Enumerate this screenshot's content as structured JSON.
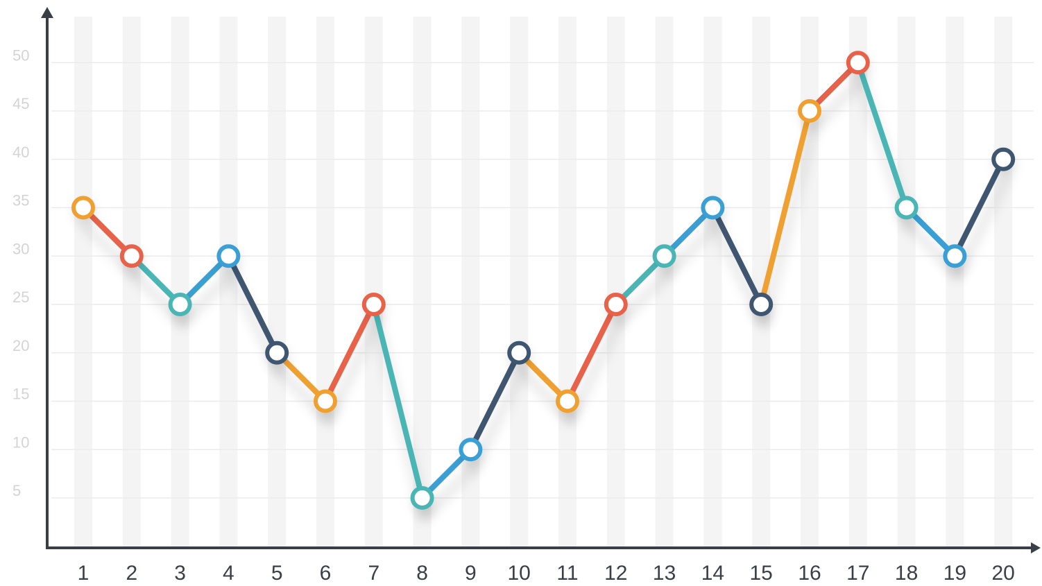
{
  "chart_data": {
    "type": "line",
    "title": "",
    "xlabel": "",
    "ylabel": "",
    "categories": [
      "1",
      "2",
      "3",
      "4",
      "5",
      "6",
      "7",
      "8",
      "9",
      "10",
      "11",
      "12",
      "13",
      "14",
      "15",
      "16",
      "17",
      "18",
      "19",
      "20"
    ],
    "values": [
      35,
      30,
      25,
      30,
      20,
      15,
      25,
      5,
      10,
      20,
      15,
      25,
      30,
      35,
      25,
      45,
      50,
      35,
      30,
      40
    ],
    "y_ticks": [
      "5",
      "10",
      "15",
      "20",
      "25",
      "30",
      "35",
      "40",
      "45",
      "50"
    ],
    "ylim": [
      0,
      55
    ],
    "grid": true,
    "legend": "none",
    "point_colors": [
      "#f0a030",
      "#e8624a",
      "#49b5b5",
      "#3a9fd4",
      "#3f5670",
      "#f0a030",
      "#e8624a",
      "#49b5b5",
      "#3a9fd4",
      "#3f5670",
      "#f0a030",
      "#e8624a",
      "#49b5b5",
      "#3a9fd4",
      "#3f5670",
      "#f0a030",
      "#e8624a",
      "#49b5b5",
      "#3a9fd4",
      "#3f5670"
    ],
    "colors": {
      "orange": "#f0a030",
      "red": "#e8624a",
      "teal": "#49b5b5",
      "blue": "#3a9fd4",
      "navy": "#3f5670",
      "axis": "#3a3f47",
      "stripe": "#f4f4f4",
      "gridline": "#ebebeb"
    }
  }
}
